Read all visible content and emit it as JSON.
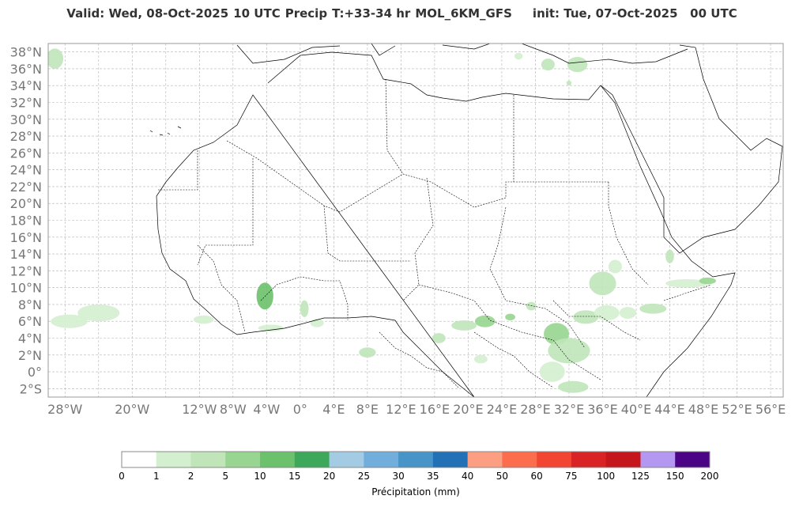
{
  "header": {
    "valid": "Valid: Wed, 08-Oct-2025",
    "hour": "10 UTC",
    "field": "Precip",
    "lead": "T:+33-34 hr",
    "model": "MOL_6KM_GFS",
    "init": "init: Tue, 07-Oct-2025   00 UTC"
  },
  "map": {
    "lon_range": [
      -30,
      57.5
    ],
    "lat_range": [
      -3,
      39
    ],
    "lat_labels": [
      "38°N",
      "36°N",
      "34°N",
      "32°N",
      "30°N",
      "28°N",
      "26°N",
      "24°N",
      "22°N",
      "20°N",
      "18°N",
      "16°N",
      "14°N",
      "12°N",
      "10°N",
      "8°N",
      "6°N",
      "4°N",
      "2°N",
      "0°",
      "2°S"
    ],
    "lat_values": [
      38,
      36,
      34,
      32,
      30,
      28,
      26,
      24,
      22,
      20,
      18,
      16,
      14,
      12,
      10,
      8,
      6,
      4,
      2,
      0,
      -2
    ],
    "lon_labels": [
      "28°W",
      "20°W",
      "12°W",
      "8°W",
      "4°W",
      "0°",
      "4°E",
      "8°E",
      "12°E",
      "16°E",
      "20°E",
      "24°E",
      "28°E",
      "32°E",
      "36°E",
      "40°E",
      "44°E",
      "48°E",
      "52°E",
      "56°E"
    ],
    "lon_values": [
      -28,
      -20,
      -12,
      -8,
      -4,
      0,
      4,
      8,
      12,
      16,
      20,
      24,
      28,
      32,
      36,
      40,
      44,
      48,
      52,
      56
    ],
    "grid_lat_step": 2,
    "grid_lon_step": 4,
    "grid": true
  },
  "colorbar": {
    "label": "Précipitation (mm)",
    "ticks": [
      "0",
      "1",
      "2",
      "5",
      "10",
      "15",
      "20",
      "25",
      "30",
      "35",
      "40",
      "50",
      "60",
      "75",
      "100",
      "125",
      "150",
      "200"
    ],
    "colors": [
      "#ffffff",
      "#d4efcf",
      "#bfe5b9",
      "#97d590",
      "#6bc16c",
      "#3da75a",
      "#a3cbe3",
      "#71aedb",
      "#4794c8",
      "#2270b5",
      "#fc9e82",
      "#fb6d4c",
      "#f24532",
      "#da2325",
      "#c5161c",
      "#b497f0",
      "#4a0485"
    ]
  },
  "precip_areas": [
    {
      "lon": -29.2,
      "lat": 37.2,
      "rx": 1.0,
      "ry": 1.2,
      "level": 2
    },
    {
      "lon": -27.5,
      "lat": 6.0,
      "rx": 2.2,
      "ry": 0.8,
      "level": 1
    },
    {
      "lon": -24.0,
      "lat": 7.0,
      "rx": 2.5,
      "ry": 1.0,
      "level": 1
    },
    {
      "lon": -11.5,
      "lat": 6.2,
      "rx": 1.2,
      "ry": 0.5,
      "level": 1
    },
    {
      "lon": -4.2,
      "lat": 9.0,
      "rx": 1.0,
      "ry": 1.6,
      "level": 4
    },
    {
      "lon": -3.5,
      "lat": 5.2,
      "rx": 1.5,
      "ry": 0.4,
      "level": 1
    },
    {
      "lon": 0.5,
      "lat": 7.5,
      "rx": 0.5,
      "ry": 1.0,
      "level": 2
    },
    {
      "lon": 2.0,
      "lat": 5.8,
      "rx": 0.8,
      "ry": 0.5,
      "level": 1
    },
    {
      "lon": 8.0,
      "lat": 2.3,
      "rx": 1.0,
      "ry": 0.6,
      "level": 2
    },
    {
      "lon": 16.5,
      "lat": 4.0,
      "rx": 0.8,
      "ry": 0.6,
      "level": 2
    },
    {
      "lon": 19.5,
      "lat": 5.5,
      "rx": 1.5,
      "ry": 0.6,
      "level": 2
    },
    {
      "lon": 22.0,
      "lat": 6.0,
      "rx": 1.2,
      "ry": 0.7,
      "level": 3
    },
    {
      "lon": 21.5,
      "lat": 1.5,
      "rx": 0.8,
      "ry": 0.5,
      "level": 1
    },
    {
      "lon": 25.0,
      "lat": 6.5,
      "rx": 0.6,
      "ry": 0.4,
      "level": 3
    },
    {
      "lon": 27.5,
      "lat": 7.8,
      "rx": 0.6,
      "ry": 0.5,
      "level": 2
    },
    {
      "lon": 30.5,
      "lat": 4.5,
      "rx": 1.5,
      "ry": 1.3,
      "level": 3
    },
    {
      "lon": 32.0,
      "lat": 2.5,
      "rx": 2.5,
      "ry": 1.5,
      "level": 2
    },
    {
      "lon": 30.0,
      "lat": 0.0,
      "rx": 1.5,
      "ry": 1.2,
      "level": 1
    },
    {
      "lon": 32.5,
      "lat": -1.8,
      "rx": 1.8,
      "ry": 0.7,
      "level": 2
    },
    {
      "lon": 34.0,
      "lat": 6.5,
      "rx": 1.5,
      "ry": 0.8,
      "level": 2
    },
    {
      "lon": 36.5,
      "lat": 7.0,
      "rx": 1.5,
      "ry": 0.9,
      "level": 1
    },
    {
      "lon": 36.0,
      "lat": 10.5,
      "rx": 1.6,
      "ry": 1.4,
      "level": 2
    },
    {
      "lon": 37.5,
      "lat": 12.5,
      "rx": 0.8,
      "ry": 0.8,
      "level": 1
    },
    {
      "lon": 39.0,
      "lat": 7.0,
      "rx": 1.0,
      "ry": 0.7,
      "level": 1
    },
    {
      "lon": 42.0,
      "lat": 7.5,
      "rx": 1.6,
      "ry": 0.6,
      "level": 2
    },
    {
      "lon": 44.0,
      "lat": 13.7,
      "rx": 0.5,
      "ry": 0.8,
      "level": 2
    },
    {
      "lon": 46.0,
      "lat": 10.5,
      "rx": 2.5,
      "ry": 0.5,
      "level": 1
    },
    {
      "lon": 48.5,
      "lat": 10.8,
      "rx": 1.0,
      "ry": 0.4,
      "level": 3
    },
    {
      "lon": 29.5,
      "lat": 36.5,
      "rx": 0.8,
      "ry": 0.7,
      "level": 2
    },
    {
      "lon": 33.0,
      "lat": 36.5,
      "rx": 1.2,
      "ry": 0.9,
      "level": 2
    },
    {
      "lon": 32.0,
      "lat": 34.3,
      "rx": 0.3,
      "ry": 0.3,
      "level": 2
    },
    {
      "lon": 26.0,
      "lat": 37.5,
      "rx": 0.5,
      "ry": 0.4,
      "level": 1
    }
  ]
}
